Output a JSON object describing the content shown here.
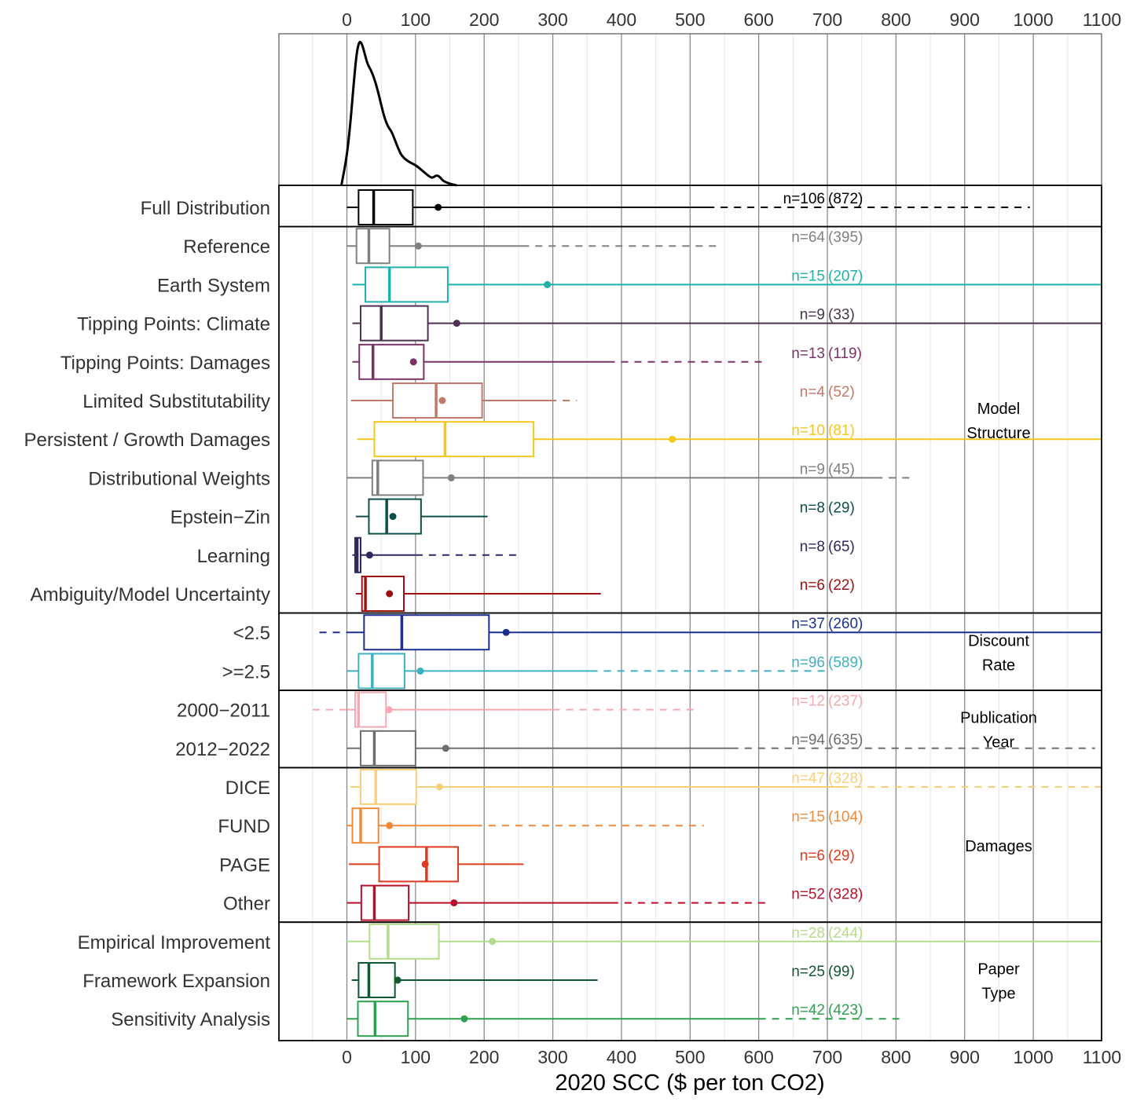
{
  "chart_data": {
    "type": "boxplot",
    "xlabel": "2020 SCC ($ per ton CO2)",
    "xlim": [
      -100,
      1100
    ],
    "xticks": [
      0,
      100,
      200,
      300,
      400,
      500,
      600,
      700,
      800,
      900,
      1000,
      1100
    ],
    "xtick_labels": [
      "0",
      "100",
      "200",
      "300",
      "400",
      "500",
      "600",
      "700",
      "800",
      "900",
      "1000",
      "1100"
    ],
    "grid": true,
    "density": {
      "color": "#000000",
      "x": [
        -8,
        0,
        5,
        10,
        14,
        18,
        22,
        26,
        30,
        35,
        40,
        45,
        50,
        55,
        60,
        65,
        70,
        75,
        80,
        90,
        100,
        110,
        120,
        125,
        130,
        135,
        140,
        150,
        160
      ],
      "y": [
        0.0,
        0.2,
        0.42,
        0.7,
        0.9,
        0.99,
        0.97,
        0.9,
        0.83,
        0.79,
        0.73,
        0.65,
        0.55,
        0.46,
        0.4,
        0.37,
        0.31,
        0.25,
        0.2,
        0.16,
        0.14,
        0.1,
        0.06,
        0.05,
        0.07,
        0.06,
        0.03,
        0.01,
        0.0
      ]
    },
    "groups": [
      {
        "label": "",
        "rows": [
          0
        ]
      },
      {
        "label": "Model Structure",
        "lines": [
          "Model",
          "Structure"
        ],
        "rows": [
          1,
          2,
          3,
          4,
          5,
          6,
          7,
          8,
          9,
          10
        ]
      },
      {
        "label": "Discount Rate",
        "lines": [
          "Discount",
          "Rate"
        ],
        "rows": [
          11,
          12
        ]
      },
      {
        "label": "Publication Year",
        "lines": [
          "Publication",
          "Year"
        ],
        "rows": [
          13,
          14
        ]
      },
      {
        "label": "Damages",
        "lines": [
          "Damages"
        ],
        "rows": [
          15,
          16,
          17,
          18
        ]
      },
      {
        "label": "Paper Type",
        "lines": [
          "Paper",
          "Type"
        ],
        "rows": [
          19,
          20,
          21
        ]
      }
    ],
    "series": [
      {
        "name": "Full Distribution",
        "color": "#000000",
        "n": "n=106",
        "count": "(872)",
        "q1": 17,
        "median": 39,
        "q3": 96,
        "mean": 133,
        "whisker_low": 0,
        "whisker_high": 525,
        "dash_high": 995
      },
      {
        "name": "Reference",
        "color": "#808080",
        "n": "n=64",
        "count": "(395)",
        "q1": 14,
        "median": 32,
        "q3": 62,
        "mean": 104,
        "whisker_low": 0,
        "whisker_high": 255,
        "dash_high": 540
      },
      {
        "name": "Earth System",
        "color": "#20b2aa",
        "n": "n=15",
        "count": "(207)",
        "q1": 27,
        "median": 62,
        "q3": 147,
        "mean": 292,
        "whisker_low": 8,
        "whisker_high": 1100
      },
      {
        "name": "Tipping Points: Climate",
        "color": "#4b3350",
        "n": "n=9",
        "count": "(33)",
        "q1": 20,
        "median": 50,
        "q3": 118,
        "mean": 160,
        "whisker_low": 8,
        "whisker_high": 1100
      },
      {
        "name": "Tipping Points: Damages",
        "color": "#7a3367",
        "n": "n=13",
        "count": "(119)",
        "q1": 18,
        "median": 38,
        "q3": 112,
        "mean": 97,
        "whisker_low": 8,
        "whisker_high": 380,
        "dash_high": 610
      },
      {
        "name": "Limited Substitutability",
        "color": "#c07a6a",
        "n": "n=4",
        "count": "(52)",
        "q1": 67,
        "median": 130,
        "q3": 197,
        "mean": 139,
        "whisker_low": 6,
        "whisker_high": 295,
        "dash_high": 335
      },
      {
        "name": "Persistent / Growth Damages",
        "color": "#f5c71a",
        "n": "n=10",
        "count": "(81)",
        "q1": 40,
        "median": 143,
        "q3": 272,
        "mean": 474,
        "whisker_low": 15,
        "whisker_high": 1100
      },
      {
        "name": "Distributional Weights",
        "color": "#7f7f7f",
        "n": "n=9",
        "count": "(45)",
        "q1": 37,
        "median": 45,
        "q3": 111,
        "mean": 152,
        "whisker_low": 0,
        "whisker_high": 770,
        "dash_high": 825
      },
      {
        "name": "Epstein−Zin",
        "color": "#0d4f4a",
        "n": "n=8",
        "count": "(29)",
        "q1": 32,
        "median": 58,
        "q3": 108,
        "mean": 67,
        "whisker_low": 13,
        "whisker_high": 205
      },
      {
        "name": "Learning",
        "color": "#2f2860",
        "n": "n=8",
        "count": "(65)",
        "q1": 12,
        "median": 15,
        "q3": 20,
        "mean": 33,
        "whisker_low": 8,
        "whisker_high": 100,
        "dash_high": 248
      },
      {
        "name": "Ambiguity/Model Uncertainty",
        "color": "#a01010",
        "n": "n=6",
        "count": "(22)",
        "q1": 22,
        "median": 27,
        "q3": 83,
        "mean": 62,
        "whisker_low": 13,
        "whisker_high": 370
      },
      {
        "name": "<2.5",
        "color": "#1f2f8f",
        "n": "n=37",
        "count": "(260)",
        "q1": 25,
        "median": 80,
        "q3": 207,
        "mean": 232,
        "whisker_low": 0,
        "whisker_high": 1100,
        "dash_low": -40
      },
      {
        "name": ">=2.5",
        "color": "#3fb0c0",
        "n": "n=96",
        "count": "(589)",
        "q1": 17,
        "median": 37,
        "q3": 84,
        "mean": 107,
        "whisker_low": 0,
        "whisker_high": 355,
        "dash_high": 700
      },
      {
        "name": "2000−2011",
        "color": "#f7a8b0",
        "n": "n=12",
        "count": "(237)",
        "q1": 12,
        "median": 17,
        "q3": 57,
        "mean": 61,
        "whisker_low": 0,
        "whisker_high": 300,
        "dash_low": -50,
        "dash_high": 505
      },
      {
        "name": "2012−2022",
        "color": "#6e6e6e",
        "n": "n=94",
        "count": "(635)",
        "q1": 20,
        "median": 40,
        "q3": 100,
        "mean": 144,
        "whisker_low": 0,
        "whisker_high": 560,
        "dash_high": 1090
      },
      {
        "name": "DICE",
        "color": "#f9d07a",
        "n": "n=47",
        "count": "(328)",
        "q1": 20,
        "median": 42,
        "q3": 101,
        "mean": 135,
        "whisker_low": 5,
        "whisker_high": 720,
        "dash_high": 1100
      },
      {
        "name": "FUND",
        "color": "#f08a3a",
        "n": "n=15",
        "count": "(104)",
        "q1": 8,
        "median": 20,
        "q3": 46,
        "mean": 62,
        "whisker_low": 0,
        "whisker_high": 187,
        "dash_high": 520
      },
      {
        "name": "PAGE",
        "color": "#e03a1e",
        "n": "n=6",
        "count": "(29)",
        "q1": 47,
        "median": 116,
        "q3": 162,
        "mean": 114,
        "whisker_low": 3,
        "whisker_high": 247,
        "dash_high": 265
      },
      {
        "name": "Other",
        "color": "#b8102a",
        "n": "n=52",
        "count": "(328)",
        "q1": 21,
        "median": 40,
        "q3": 90,
        "mean": 156,
        "whisker_low": 0,
        "whisker_high": 385,
        "dash_high": 615
      },
      {
        "name": "Empirical Improvement",
        "color": "#b4dc8c",
        "n": "n=28",
        "count": "(244)",
        "q1": 33,
        "median": 60,
        "q3": 134,
        "mean": 212,
        "whisker_low": 0,
        "whisker_high": 1100
      },
      {
        "name": "Framework Expansion",
        "color": "#11572f",
        "n": "n=25",
        "count": "(99)",
        "q1": 17,
        "median": 32,
        "q3": 70,
        "mean": 74,
        "whisker_low": 7,
        "whisker_high": 355,
        "dash_high": 368
      },
      {
        "name": "Sensitivity Analysis",
        "color": "#2ea050",
        "n": "n=42",
        "count": "(423)",
        "q1": 16,
        "median": 41,
        "q3": 89,
        "mean": 171,
        "whisker_low": 0,
        "whisker_high": 600,
        "dash_high": 805
      }
    ]
  }
}
